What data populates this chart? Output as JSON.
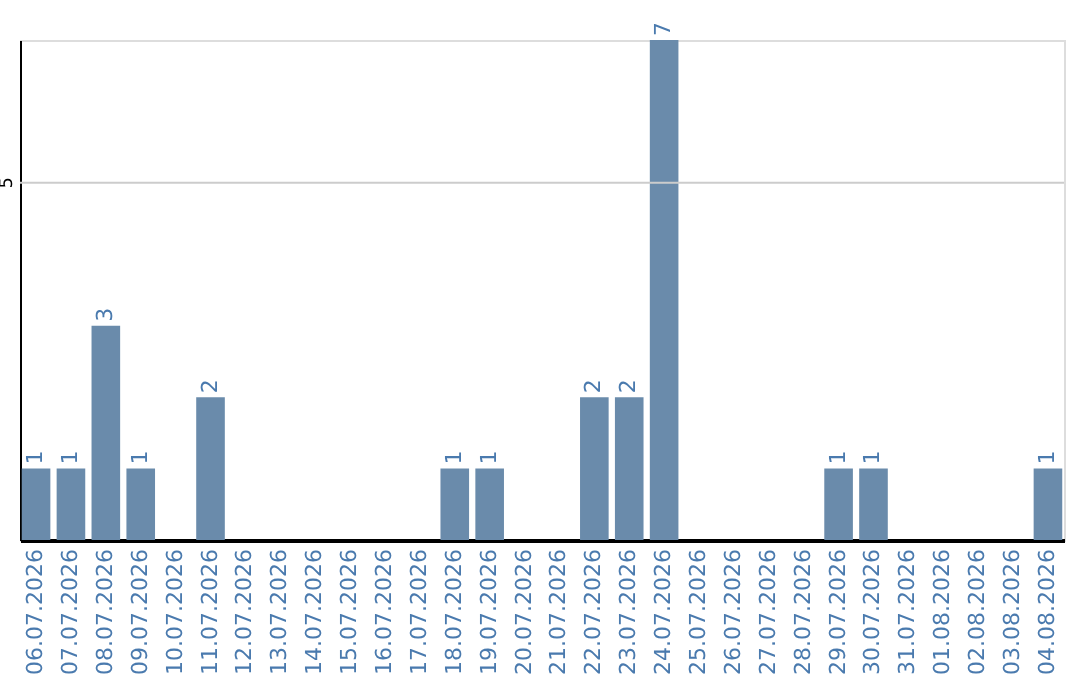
{
  "chart_data": {
    "type": "bar",
    "categories": [
      "06.07.2026",
      "07.07.2026",
      "08.07.2026",
      "09.07.2026",
      "10.07.2026",
      "11.07.2026",
      "12.07.2026",
      "13.07.2026",
      "14.07.2026",
      "15.07.2026",
      "16.07.2026",
      "17.07.2026",
      "18.07.2026",
      "19.07.2026",
      "20.07.2026",
      "21.07.2026",
      "22.07.2026",
      "23.07.2026",
      "24.07.2026",
      "25.07.2026",
      "26.07.2026",
      "27.07.2026",
      "28.07.2026",
      "29.07.2026",
      "30.07.2026",
      "31.07.2026",
      "01.08.2026",
      "02.08.2026",
      "03.08.2026",
      "04.08.2026"
    ],
    "values": [
      1,
      1,
      3,
      1,
      0,
      2,
      0,
      0,
      0,
      0,
      0,
      0,
      1,
      1,
      0,
      0,
      2,
      2,
      7,
      0,
      0,
      0,
      0,
      1,
      1,
      0,
      0,
      0,
      0,
      1
    ],
    "value_labels": [
      "1",
      "1",
      "3",
      "1",
      null,
      "2",
      null,
      null,
      null,
      null,
      null,
      null,
      "1",
      "1",
      null,
      null,
      "2",
      "2",
      "7",
      null,
      null,
      null,
      null,
      "1",
      "1",
      null,
      null,
      null,
      null,
      "1"
    ],
    "color": "#6a8bab",
    "ref_lines": [
      {
        "axis": "y",
        "value": 5,
        "label": "5",
        "color": "#cccccc"
      }
    ]
  }
}
